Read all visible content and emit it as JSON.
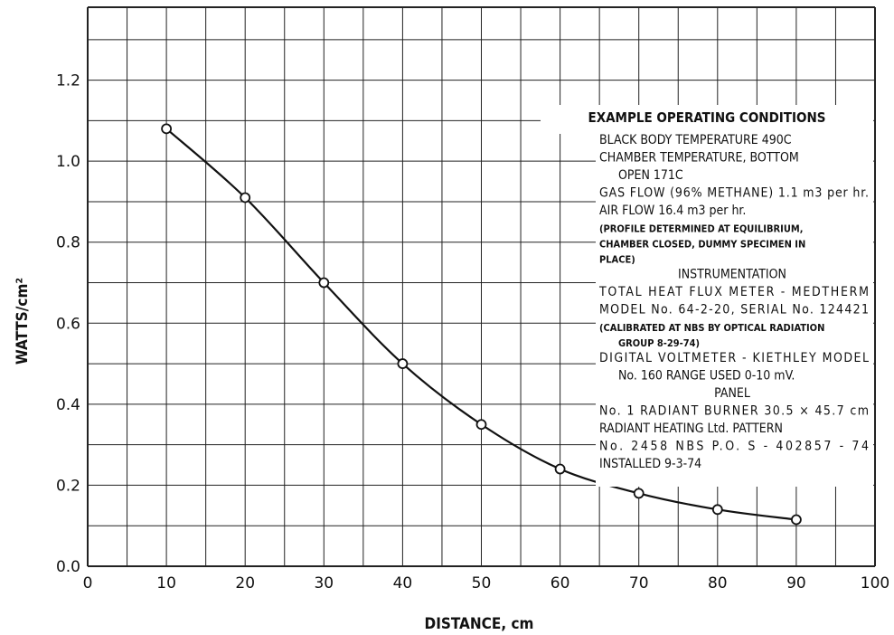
{
  "chart_data": {
    "type": "line",
    "xlabel": "DISTANCE, cm",
    "ylabel": "WATTS/cm²",
    "xlim": [
      0,
      100
    ],
    "ylim": [
      0.0,
      1.2
    ],
    "x_ticks": [
      "0",
      "10",
      "20",
      "30",
      "40",
      "50",
      "60",
      "70",
      "80",
      "90",
      "100"
    ],
    "y_ticks": [
      "0.0",
      "0.2",
      "0.4",
      "0.6",
      "0.8",
      "1.0",
      "1.2"
    ],
    "grid": true,
    "series": [
      {
        "x": [
          10,
          20,
          30,
          40,
          50,
          60,
          70,
          80,
          90
        ],
        "y": [
          1.08,
          0.91,
          0.7,
          0.5,
          0.35,
          0.24,
          0.18,
          0.14,
          0.115
        ]
      }
    ],
    "annotation": {
      "heading": "EXAMPLE OPERATING CONDITIONS",
      "lines": [
        "BLACK BODY TEMPERATURE  490C",
        "CHAMBER TEMPERATURE, BOTTOM",
        "OPEN  171C",
        "GAS FLOW (96% METHANE) 1.1 m3 per hr.",
        "AIR FLOW  16.4 m3 per hr.",
        "(PROFILE DETERMINED AT EQUILIBRIUM,",
        "CHAMBER CLOSED, DUMMY SPECIMEN IN",
        "PLACE)",
        "INSTRUMENTATION",
        "TOTAL HEAT FLUX METER - MEDTHERM",
        "MODEL No. 64-2-20, SERIAL No. 124421",
        "(CALIBRATED AT NBS BY OPTICAL RADIATION",
        "GROUP 8-29-74)",
        "DIGITAL VOLTMETER - KIETHLEY MODEL",
        "No. 160  RANGE USED 0-10 mV.",
        "PANEL",
        "No. 1 RADIANT BURNER 30.5 × 45.7 cm",
        "RADIANT HEATING Ltd.  PATTERN",
        "No. 2458  NBS P.O. S - 402857 - 74",
        "INSTALLED 9-3-74"
      ]
    }
  }
}
